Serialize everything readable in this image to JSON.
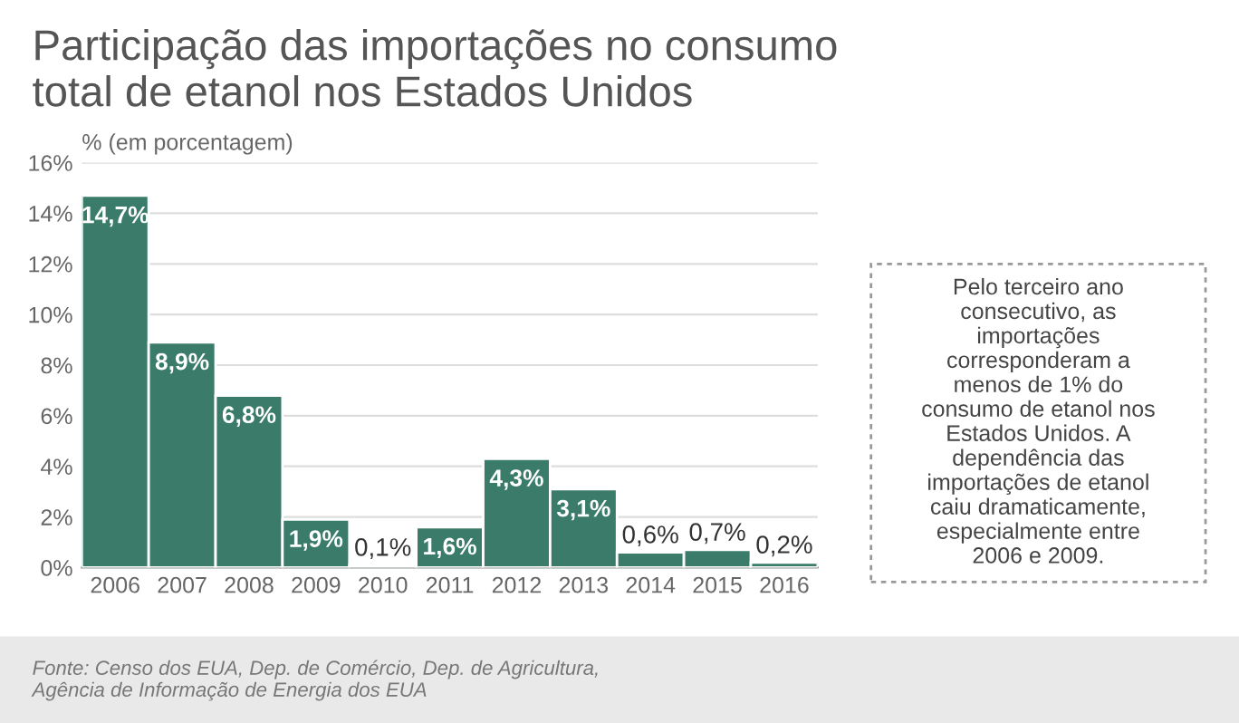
{
  "chart_data": {
    "type": "bar",
    "title": "Participação das importações no consumo\ntotal de etanol nos Estados Unidos",
    "ylabel": "% (em porcentagem)",
    "categories": [
      "2006",
      "2007",
      "2008",
      "2009",
      "2010",
      "2011",
      "2012",
      "2013",
      "2014",
      "2015",
      "2016"
    ],
    "values": [
      14.7,
      8.9,
      6.8,
      1.9,
      0.1,
      1.6,
      4.3,
      3.1,
      0.6,
      0.7,
      0.2
    ],
    "value_labels": [
      "14,7%",
      "8,9%",
      "6,8%",
      "1,9%",
      "0,1%",
      "1,6%",
      "4,3%",
      "3,1%",
      "0,6%",
      "0,7%",
      "0,2%"
    ],
    "color": "#3a7b69",
    "ylim": [
      0,
      16
    ],
    "yticks": [
      {
        "value": 0,
        "label": "0%"
      },
      {
        "value": 2,
        "label": "2%"
      },
      {
        "value": 4,
        "label": "4%"
      },
      {
        "value": 6,
        "label": "6%"
      },
      {
        "value": 8,
        "label": "8%"
      },
      {
        "value": 10,
        "label": "10%"
      },
      {
        "value": 12,
        "label": "12%"
      },
      {
        "value": 14,
        "label": "14%"
      },
      {
        "value": 16,
        "label": "16%"
      }
    ],
    "grid": "y",
    "annotations": [
      "Pelo terceiro ano\nconsecutivo, as\nimportações\ncorresponderam a\nmenos de 1% do\nconsumo de etanol nos\nEstados Unidos. A\ndependência das\nimportações de etanol\ncaiu dramaticamente,\nespecialmente entre\n2006 e 2009.",
      "Fonte: Censo dos EUA, Dep. de Comércio, Dep. de Agricultura,\nAgência de Informação de Energia dos EUA"
    ]
  }
}
